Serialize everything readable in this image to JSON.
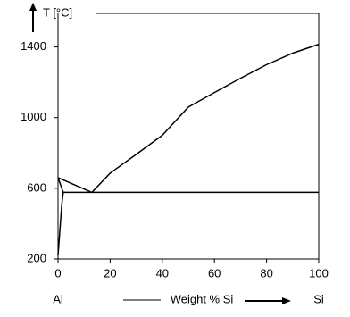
{
  "chart_data": {
    "type": "line",
    "y_label": "T [°C]",
    "x_label": "Weight % Si",
    "x_left_label": "Al",
    "x_right_label": "Si",
    "xlim": [
      0,
      100
    ],
    "xticks": [
      0,
      20,
      40,
      60,
      80,
      100
    ],
    "ylim": [
      200,
      1590
    ],
    "yticks": [
      200,
      600,
      1000,
      1400
    ],
    "color": "#000000",
    "series": [
      {
        "x": [
          0,
          13
        ],
        "values": [
          660,
          577
        ]
      },
      {
        "x": [
          13,
          20,
          30,
          40,
          50,
          60,
          70,
          80,
          90,
          100
        ],
        "values": [
          577,
          686,
          792,
          900,
          1060,
          1142,
          1223,
          1300,
          1365,
          1415
        ]
      },
      {
        "x": [
          2,
          100
        ],
        "values": [
          577,
          577
        ]
      },
      {
        "x": [
          0,
          2
        ],
        "values": [
          660,
          577
        ]
      },
      {
        "x": [
          2,
          1.4,
          0.9,
          0.4,
          0
        ],
        "values": [
          577,
          500,
          400,
          300,
          220
        ]
      }
    ]
  }
}
